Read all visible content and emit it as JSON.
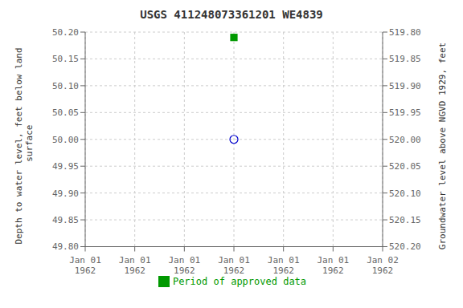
{
  "chart_data": {
    "type": "scatter",
    "title": "USGS 411248073361201 WE4839",
    "y_label": "Depth to water level, feet below land\n surface",
    "y2_label": "Groundwater level above NGVD 1929, feet",
    "categories": [
      "Jan 01\n1962",
      "Jan 01\n1962",
      "Jan 01\n1962",
      "Jan 01\n1962",
      "Jan 01\n1962",
      "Jan 01\n1962",
      "Jan 02\n1962"
    ],
    "series": [
      {
        "color": "#0000cc",
        "marker": "open_circle",
        "values": [
          null,
          null,
          null,
          50.0,
          null,
          null,
          null
        ]
      },
      {
        "name": "Period of approved data",
        "color": "#009900",
        "marker": "square",
        "values": [
          null,
          null,
          null,
          50.19,
          null,
          null,
          null
        ]
      }
    ],
    "ylim": [
      49.8,
      50.2
    ],
    "yticks": [
      {
        "value": 49.8,
        "label": "49.80"
      },
      {
        "value": 49.85,
        "label": "49.85"
      },
      {
        "value": 49.9,
        "label": "49.90"
      },
      {
        "value": 49.95,
        "label": "49.95"
      },
      {
        "value": 50.0,
        "label": "50.00"
      },
      {
        "value": 50.05,
        "label": "50.05"
      },
      {
        "value": 50.1,
        "label": "50.10"
      },
      {
        "value": 50.15,
        "label": "50.15"
      },
      {
        "value": 50.2,
        "label": "50.20"
      }
    ],
    "y2lim": [
      520.2,
      519.8
    ],
    "y2ticks": [
      {
        "value": 520.2,
        "label": "520.20"
      },
      {
        "value": 520.15,
        "label": "520.15"
      },
      {
        "value": 520.1,
        "label": "520.10"
      },
      {
        "value": 520.05,
        "label": "520.05"
      },
      {
        "value": 520.0,
        "label": "520.00"
      },
      {
        "value": 519.95,
        "label": "519.95"
      },
      {
        "value": 519.9,
        "label": "519.90"
      },
      {
        "value": 519.85,
        "label": "519.85"
      },
      {
        "value": 519.8,
        "label": "519.80"
      }
    ],
    "grid": true,
    "legend": "bottom"
  }
}
